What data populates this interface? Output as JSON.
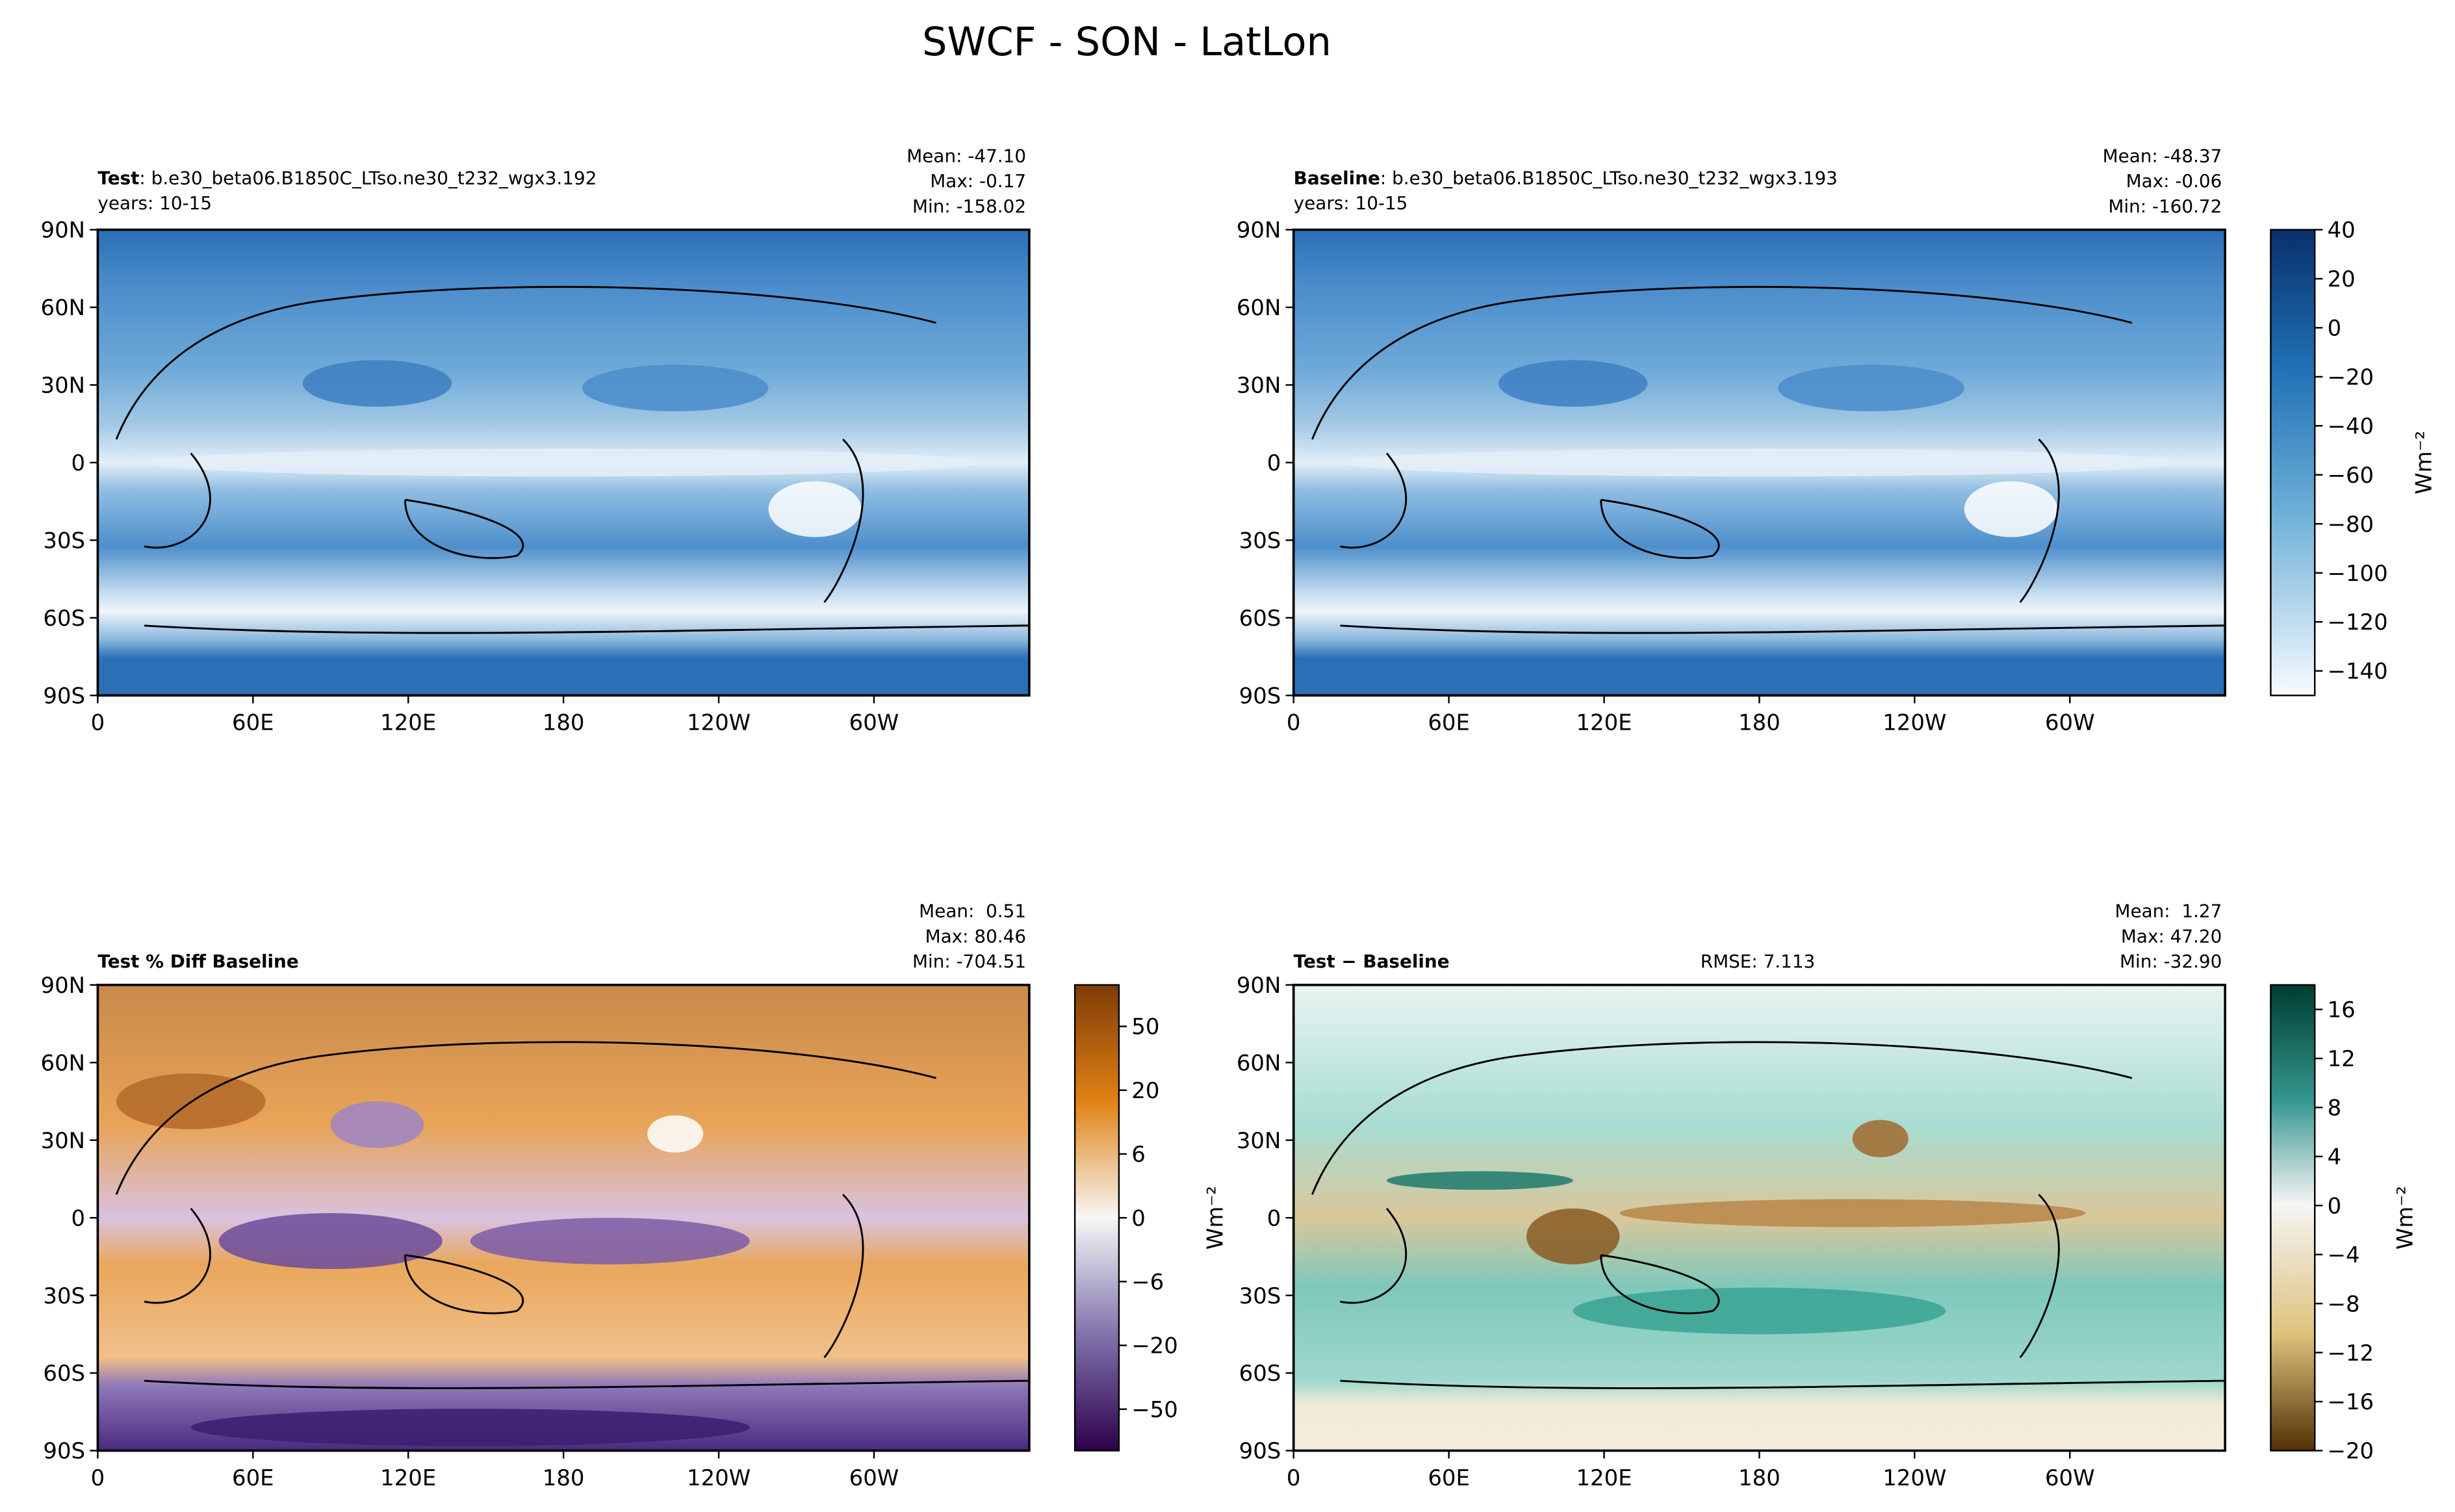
{
  "title": "SWCF - SON - LatLon",
  "panels": [
    {
      "title_bold": "Test",
      "title_rest": ": b.e30_beta06.B1850C_LTso.ne30_t232_wgx3.192",
      "years": "years: 10-15",
      "stats": [
        "Mean: -47.10",
        "Max: -0.17",
        "Min: -158.02"
      ]
    },
    {
      "title_bold": "Baseline",
      "title_rest": ": b.e30_beta06.B1850C_LTso.ne30_t232_wgx3.193",
      "years": "years: 10-15",
      "stats": [
        "Mean: -48.37",
        "Max: -0.06",
        "Min: -160.72"
      ]
    },
    {
      "title_bold": "Test % Diff Baseline",
      "stats": [
        "Mean:  0.51",
        "Max: 80.46",
        "Min: -704.51"
      ]
    },
    {
      "title_bold": "Test − Baseline",
      "rmse": "RMSE: 7.113",
      "stats": [
        "Mean:  1.27",
        "Max: 47.20",
        "Min: -32.90"
      ]
    }
  ],
  "lat_ticks": [
    "90N",
    "60N",
    "30N",
    "0",
    "30S",
    "60S",
    "90S"
  ],
  "lon_ticks": [
    "0",
    "60E",
    "120E",
    "180",
    "120W",
    "60W"
  ],
  "colorbars": [
    {
      "label": "Wm⁻²",
      "lim": [
        -150,
        40
      ],
      "ticks": [
        40,
        20,
        0,
        {
          "value": -20,
          "label": "−20"
        },
        {
          "value": -40,
          "label": "−40"
        },
        {
          "value": -60,
          "label": "−60"
        },
        {
          "value": -80,
          "label": "−80"
        },
        {
          "value": -100,
          "label": "−100"
        },
        {
          "value": -120,
          "label": "−120"
        },
        {
          "value": -140,
          "label": "−140"
        }
      ]
    },
    {
      "label": "Wm⁻²",
      "ticks": [
        50,
        20,
        6,
        0,
        {
          "value": -6,
          "label": "−6"
        },
        {
          "value": -20,
          "label": "−20"
        },
        {
          "value": -50,
          "label": "−50"
        }
      ]
    },
    {
      "label": "Wm⁻²",
      "lim": [
        -20,
        18
      ],
      "ticks": [
        16,
        12,
        8,
        4,
        0,
        {
          "value": -4,
          "label": "−4"
        },
        {
          "value": -8,
          "label": "−8"
        },
        {
          "value": -12,
          "label": "−12"
        },
        {
          "value": -16,
          "label": "−16"
        },
        {
          "value": -20,
          "label": "−20"
        }
      ]
    }
  ]
}
